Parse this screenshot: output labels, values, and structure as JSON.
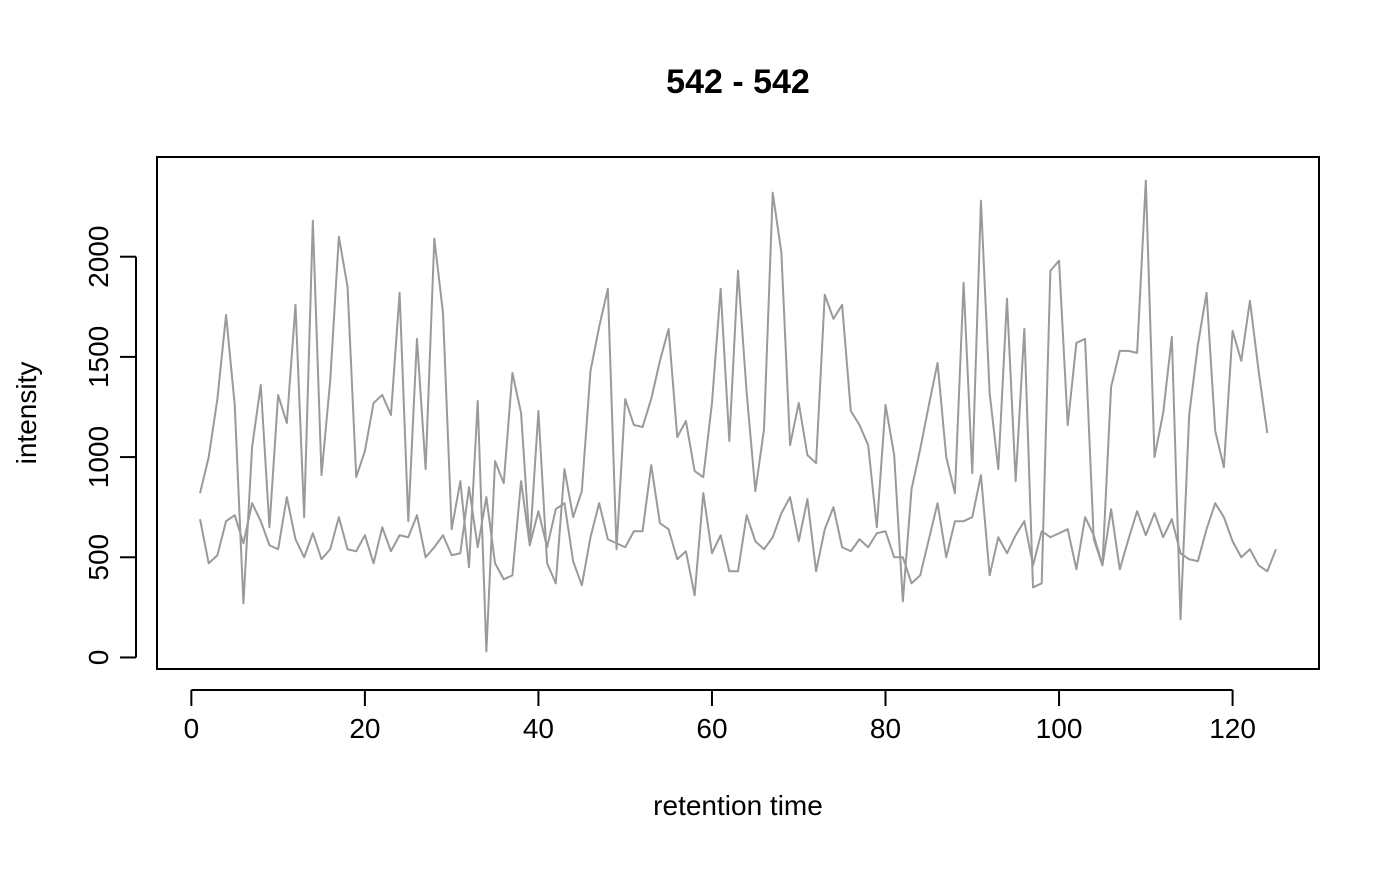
{
  "chart_data": {
    "type": "line",
    "title": "542 - 542",
    "xlabel": "retention time",
    "ylabel": "intensity",
    "xlim": [
      -3.96,
      129.96
    ],
    "ylim": [
      -57.6,
      2497.6
    ],
    "x_ticks": [
      0,
      20,
      40,
      60,
      80,
      100,
      120
    ],
    "y_ticks": [
      0,
      500,
      1000,
      1500,
      2000
    ],
    "x_tick_labels": [
      "0",
      "20",
      "40",
      "60",
      "80",
      "100",
      "120"
    ],
    "y_tick_labels": [
      "0",
      "500",
      "1000",
      "1500",
      "2000"
    ],
    "grid": false,
    "legend": "none",
    "series": [
      {
        "color": "#9a9a9a",
        "x": [
          1,
          2,
          3,
          4,
          5,
          6,
          7,
          8,
          9,
          10,
          11,
          12,
          13,
          14,
          15,
          16,
          17,
          18,
          19,
          20,
          21,
          22,
          23,
          24,
          25,
          26,
          27,
          28,
          29,
          30,
          31,
          32,
          33,
          34,
          35,
          36,
          37,
          38,
          39,
          40,
          41,
          42,
          43,
          44,
          45,
          46,
          47,
          48,
          49,
          50,
          51,
          52,
          53,
          54,
          55,
          56,
          57,
          58,
          59,
          60,
          61,
          62,
          63,
          64,
          65,
          66,
          67,
          68,
          69,
          70,
          71,
          72,
          73,
          74,
          75,
          76,
          77,
          78,
          79,
          80,
          81,
          82,
          83,
          84,
          85,
          86,
          87,
          88,
          89,
          90,
          91,
          92,
          93,
          94,
          95,
          96,
          97,
          98,
          99,
          100,
          101,
          102,
          103,
          104,
          105,
          106,
          107,
          108,
          109,
          110,
          111,
          112,
          113,
          114,
          115,
          116,
          117,
          118,
          119,
          120,
          121,
          122,
          123,
          124
        ],
        "values": [
          820,
          1000,
          1290,
          1710,
          1260,
          270,
          1050,
          1360,
          650,
          1310,
          1170,
          1760,
          700,
          2180,
          910,
          1380,
          2100,
          1850,
          900,
          1030,
          1270,
          1310,
          1210,
          1820,
          680,
          1590,
          940,
          2090,
          1720,
          640,
          880,
          450,
          1280,
          30,
          980,
          870,
          1420,
          1220,
          560,
          1230,
          470,
          370,
          940,
          700,
          830,
          1430,
          1650,
          1840,
          540,
          1290,
          1160,
          1150,
          1290,
          1480,
          1640,
          1100,
          1180,
          930,
          900,
          1270,
          1840,
          1080,
          1930,
          1320,
          830,
          1140,
          2320,
          2020,
          1060,
          1270,
          1010,
          970,
          1810,
          1690,
          1760,
          1230,
          1160,
          1060,
          650,
          1260,
          1010,
          280,
          840,
          1040,
          1260,
          1470,
          1000,
          820,
          1870,
          920,
          2280,
          1320,
          940,
          1790,
          880,
          1640,
          350,
          370,
          1930,
          1980,
          1160,
          1570,
          1590,
          590,
          460,
          1350,
          1530,
          1530,
          1520,
          2380,
          1000,
          1220,
          1600,
          190,
          1210,
          1560,
          1820,
          1130,
          950,
          1630,
          1480,
          1780,
          1430,
          1120
        ]
      },
      {
        "color": "#9a9a9a",
        "x": [
          1,
          2,
          3,
          4,
          5,
          6,
          7,
          8,
          9,
          10,
          11,
          12,
          13,
          14,
          15,
          16,
          17,
          18,
          19,
          20,
          21,
          22,
          23,
          24,
          25,
          26,
          27,
          28,
          29,
          30,
          31,
          32,
          33,
          34,
          35,
          36,
          37,
          38,
          39,
          40,
          41,
          42,
          43,
          44,
          45,
          46,
          47,
          48,
          49,
          50,
          51,
          52,
          53,
          54,
          55,
          56,
          57,
          58,
          59,
          60,
          61,
          62,
          63,
          64,
          65,
          66,
          67,
          68,
          69,
          70,
          71,
          72,
          73,
          74,
          75,
          76,
          77,
          78,
          79,
          80,
          81,
          82,
          83,
          84,
          85,
          86,
          87,
          88,
          89,
          90,
          91,
          92,
          93,
          94,
          95,
          96,
          97,
          98,
          99,
          100,
          101,
          102,
          103,
          104,
          105,
          106,
          107,
          108,
          109,
          110,
          111,
          112,
          113,
          114,
          115,
          116,
          117,
          118,
          119,
          120,
          121,
          122,
          123,
          124,
          125
        ],
        "values": [
          690,
          470,
          510,
          680,
          710,
          570,
          770,
          680,
          560,
          540,
          800,
          590,
          500,
          620,
          490,
          540,
          700,
          540,
          530,
          610,
          470,
          650,
          530,
          610,
          600,
          710,
          500,
          550,
          610,
          510,
          520,
          850,
          550,
          800,
          470,
          390,
          410,
          880,
          560,
          730,
          550,
          740,
          770,
          480,
          360,
          600,
          770,
          590,
          570,
          550,
          630,
          630,
          960,
          670,
          640,
          490,
          530,
          310,
          820,
          520,
          610,
          430,
          430,
          710,
          580,
          540,
          600,
          720,
          800,
          580,
          790,
          430,
          640,
          750,
          550,
          530,
          590,
          550,
          620,
          630,
          500,
          500,
          370,
          410,
          590,
          770,
          500,
          680,
          680,
          700,
          910,
          410,
          600,
          520,
          610,
          680,
          460,
          630,
          600,
          620,
          640,
          440,
          700,
          610,
          460,
          740,
          440,
          590,
          730,
          610,
          720,
          600,
          690,
          520,
          490,
          480,
          640,
          770,
          700,
          580,
          500,
          540,
          460,
          430,
          540
        ]
      }
    ]
  }
}
